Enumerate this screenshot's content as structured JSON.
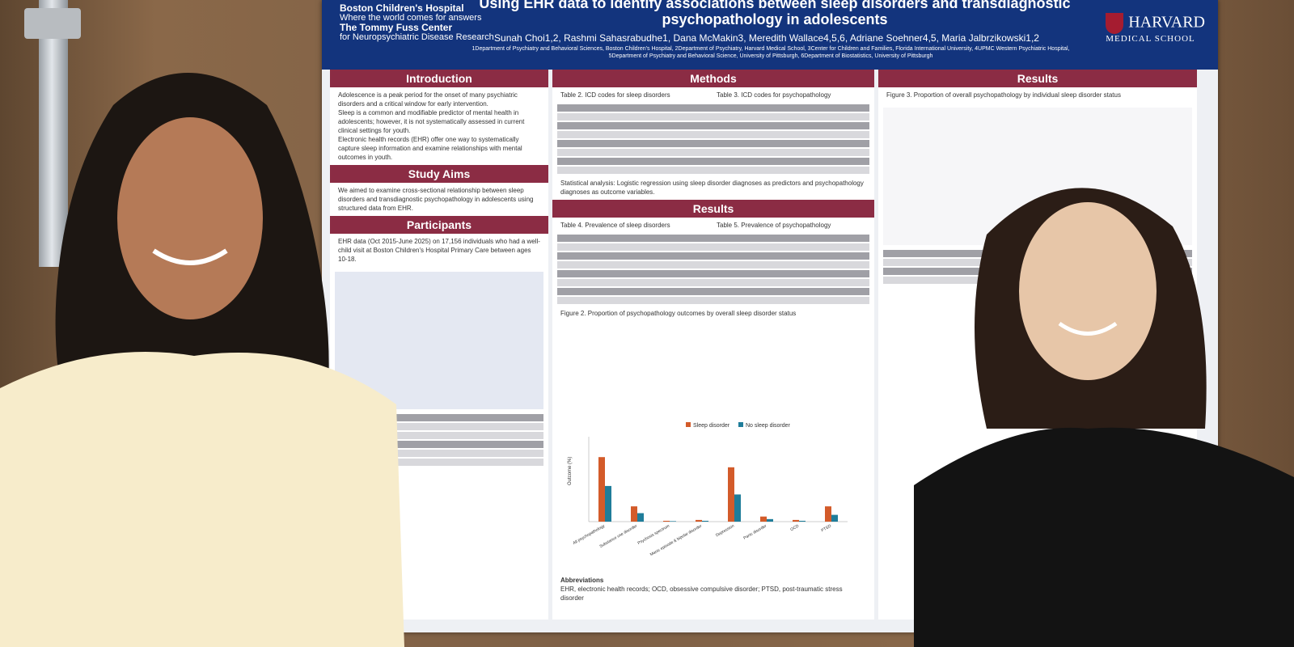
{
  "poster": {
    "logo_left_name": "Boston Children's Hospital",
    "logo_left_tagline": "Where the world comes for answers",
    "logo_left_center": "The Tommy Fuss Center",
    "logo_left_center_sub": "for Neuropsychiatric Disease Research",
    "title": "Using EHR data to identify associations between sleep disorders and transdiagnostic psychopathology in adolescents",
    "authors": "Sunah Choi1,2, Rashmi Sahasrabudhe1, Dana McMakin3, Meredith Wallace4,5,6, Adriane Soehner4,5, Maria Jalbrzikowski1,2",
    "affiliations": "1Department of Psychiatry and Behavioral Sciences, Boston Children's Hospital, 2Department of Psychiatry, Harvard Medical School, 3Center for Children and Families, Florida International University, 4UPMC Western Psychiatric Hospital, 5Department of Psychiatry and Behavioral Science, University of Pittsburgh, 6Department of Biostatistics, University of Pittsburgh",
    "logo_right": "HARVARD",
    "logo_right_sub": "MEDICAL SCHOOL",
    "sections": {
      "introduction": "Introduction",
      "study_aims": "Study Aims",
      "participants": "Participants",
      "methods": "Methods",
      "results_mid": "Results",
      "results_right": "Results"
    },
    "intro_bullets": [
      "Adolescence is a peak period for the onset of many psychiatric disorders and a critical window for early intervention.",
      "Sleep is a common and modifiable predictor of mental health in adolescents; however, it is not systematically assessed in current clinical settings for youth.",
      "Electronic health records (EHR) offer one way to systematically capture sleep information and examine relationships with mental outcomes in youth."
    ],
    "aims_text": "We aimed to examine cross-sectional relationship between sleep disorders and transdiagnostic psychopathology in adolescents using structured data from EHR.",
    "participants_text": "EHR data (Oct 2015-June 2025) on 17,156 individuals who had a well-child visit at Boston Children's Hospital Primary Care between ages 10-18.",
    "table2_title": "Table 2. ICD codes for sleep disorders",
    "table3_title": "Table 3. ICD codes for psychopathology",
    "stat_analysis": "Statistical analysis: Logistic regression using sleep disorder diagnoses as predictors and psychopathology diagnoses as outcome variables.",
    "table4_title": "Table 4. Prevalence of sleep disorders",
    "table5_title": "Table 5. Prevalence of psychopathology",
    "fig2_title": "Figure 2. Proportion of psychopathology outcomes by overall sleep disorder status",
    "fig3_title": "Figure 3. Proportion of overall psychopathology by individual sleep disorder status",
    "legend_sleep": "Sleep disorder",
    "legend_nosleep": "No sleep disorder",
    "abbrev_title": "Abbreviations",
    "abbrev_text": "EHR, electronic health records; OCD, obsessive compulsive disorder; PTSD, post-traumatic stress disorder"
  },
  "chart_data": {
    "type": "bar",
    "title": "Figure 2. Proportion of psychopathology outcomes by overall sleep disorder status",
    "ylabel": "Outcome (%)",
    "ylim": [
      0,
      50
    ],
    "categories": [
      "All psychopathology",
      "Substance use disorder",
      "Psychosis spectrum",
      "Manic episode & bipolar disorder",
      "Depression",
      "Panic disorder",
      "OCD",
      "PTSD"
    ],
    "series": [
      {
        "name": "Sleep disorder",
        "values": [
          38,
          9,
          0.5,
          1,
          32,
          3,
          1,
          9
        ],
        "color": "#d35b2a"
      },
      {
        "name": "No sleep disorder",
        "values": [
          21,
          5,
          0.3,
          0.5,
          16,
          1.5,
          0.5,
          4
        ],
        "color": "#1f7d9a"
      }
    ]
  },
  "colors": {
    "header": "#13347d",
    "section": "#8b2c44",
    "wall": "#7e6046"
  }
}
